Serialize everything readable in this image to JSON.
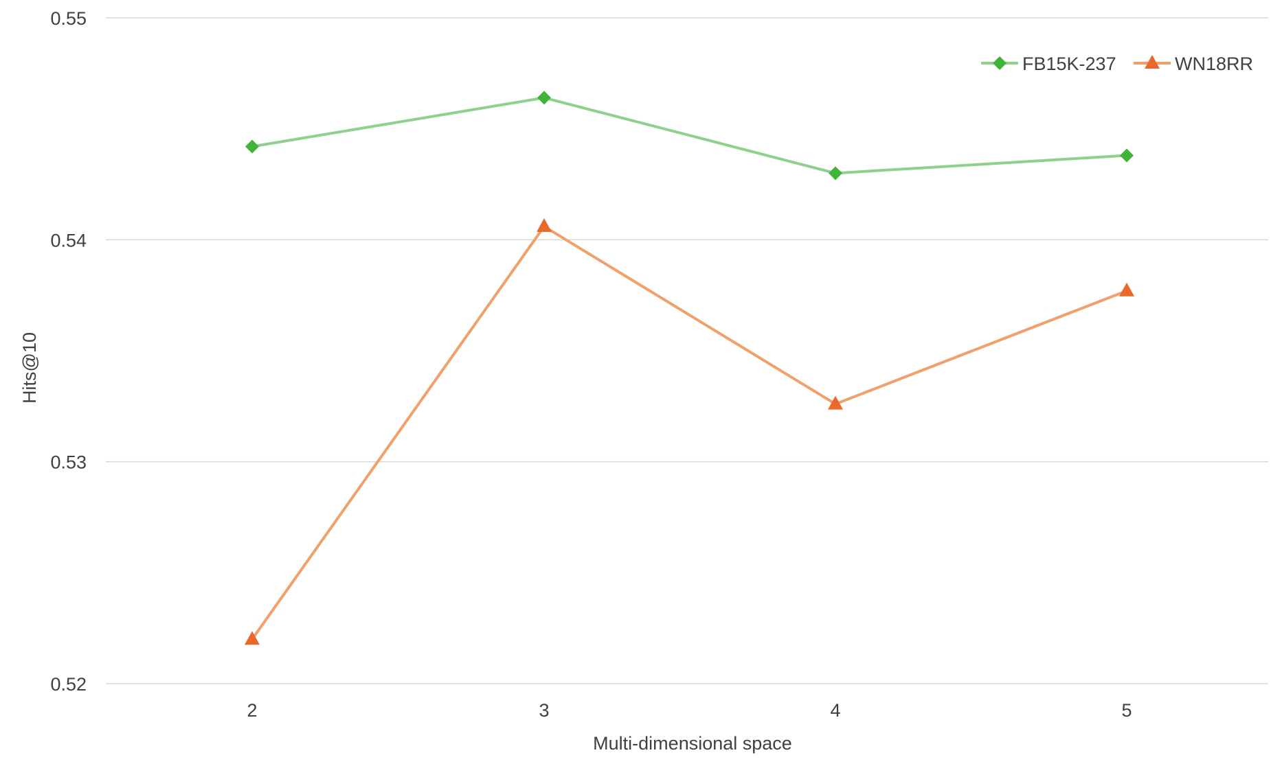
{
  "chart_data": {
    "type": "line",
    "title": "",
    "xlabel": "Multi-dimensional space",
    "ylabel": "Hits@10",
    "x": [
      "2",
      "3",
      "4",
      "5"
    ],
    "y_ticks": [
      "0.52",
      "0.53",
      "0.54",
      "0.55"
    ],
    "ylim": [
      0.52,
      0.55
    ],
    "grid": "horizontal",
    "legend_position": "top-right",
    "series": [
      {
        "name": "FB15K-237",
        "values": [
          0.5442,
          0.5464,
          0.543,
          0.5438
        ],
        "line_color": "#8fd18a",
        "marker_color": "#3fb33a",
        "marker": "diamond"
      },
      {
        "name": "WN18RR",
        "values": [
          0.522,
          0.5406,
          0.5326,
          0.5377
        ],
        "line_color": "#f0a06a",
        "marker_color": "#e8692a",
        "marker": "triangle"
      }
    ]
  }
}
